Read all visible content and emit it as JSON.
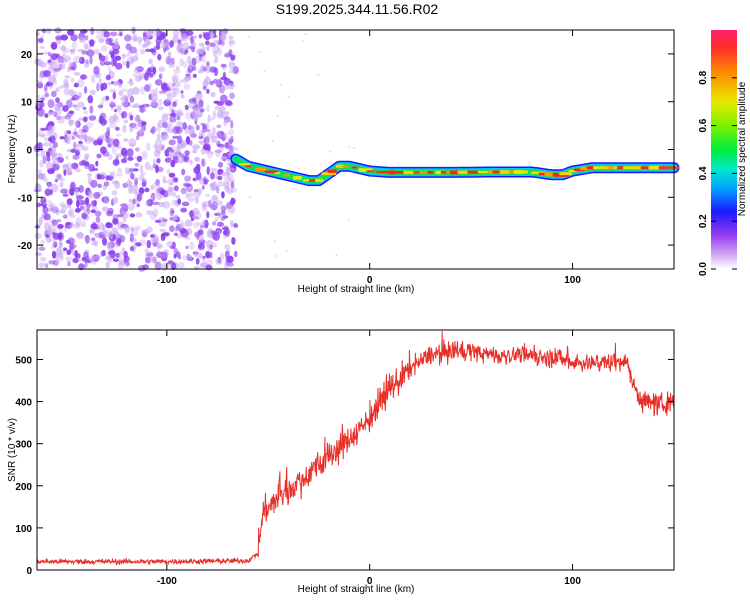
{
  "title": "S199.2025.344.11.56.R02",
  "colors": {
    "noise": "#8a3cf0",
    "noise_light": "#c9a6f5",
    "snr_line": "#e8302a",
    "axis": "#000000",
    "band_edge": "#0000ff"
  },
  "chart_data": [
    {
      "type": "heatmap",
      "xlabel": "Height of straight line (km)",
      "ylabel": "Frequency (Hz)",
      "xlim": [
        -164,
        150
      ],
      "ylim": [
        -25,
        25
      ],
      "xticks": [
        -100,
        0,
        100
      ],
      "yticks": [
        -20,
        -10,
        0,
        10,
        20
      ],
      "noise_region_x": [
        -164,
        -66
      ],
      "ridge": {
        "x": [
          -66,
          -60,
          -50,
          -40,
          -30,
          -25,
          -20,
          -15,
          -10,
          -5,
          0,
          10,
          20,
          40,
          60,
          80,
          90,
          95,
          100,
          110,
          150
        ],
        "y": [
          -2,
          -3.5,
          -4.5,
          -5.5,
          -6.5,
          -6.5,
          -5,
          -3.5,
          -3.5,
          -4,
          -4.5,
          -4.8,
          -4.8,
          -4.8,
          -4.7,
          -4.7,
          -5.3,
          -5.3,
          -4.5,
          -3.8,
          -3.8
        ]
      },
      "colorbar": {
        "label": "Normalized spectral amplitude",
        "ticks": [
          "0.0",
          "0.2",
          "0.4",
          "0.6",
          "0.8"
        ],
        "range": [
          0,
          1
        ]
      }
    },
    {
      "type": "line",
      "xlabel": "Height of straight line (km)",
      "ylabel": "SNR (10 * v/v)",
      "xlim": [
        -164,
        150
      ],
      "ylim": [
        0,
        570
      ],
      "xticks": [
        -100,
        0,
        100
      ],
      "yticks": [
        0,
        100,
        200,
        300,
        400,
        500
      ],
      "series": [
        {
          "name": "SNR",
          "x": [
            -164,
            -100,
            -60,
            -55,
            -53,
            -50,
            -40,
            -30,
            -20,
            -10,
            0,
            10,
            20,
            30,
            40,
            50,
            60,
            80,
            100,
            110,
            120,
            127,
            130,
            133,
            140,
            150
          ],
          "y": [
            20,
            20,
            22,
            40,
            130,
            150,
            190,
            230,
            270,
            310,
            360,
            430,
            480,
            510,
            520,
            520,
            510,
            510,
            495,
            490,
            495,
            495,
            440,
            410,
            390,
            400
          ]
        }
      ]
    }
  ]
}
